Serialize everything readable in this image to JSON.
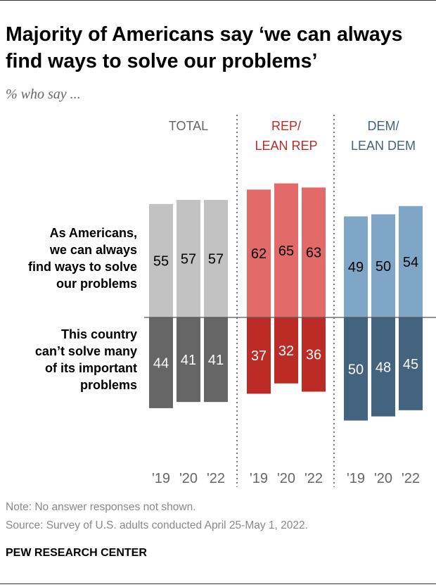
{
  "chart_data": {
    "type": "bar",
    "title": "Majority of Americans say ‘we can always find ways to solve our problems’",
    "subtitle": "% who say ...",
    "row_labels": [
      "As Americans, we can always find ways to solve our problems",
      "This country can’t solve many of its important problems"
    ],
    "row_label_lines": [
      [
        "As Americans,",
        "we can always",
        "find ways to solve",
        "our problems"
      ],
      [
        "This country",
        "can’t solve many",
        "of its important",
        "problems"
      ]
    ],
    "categories": [
      "'19",
      "'20",
      "'22"
    ],
    "groups": [
      {
        "name": "TOTAL",
        "label_lines": [
          "TOTAL"
        ],
        "header_color": "#666666",
        "light_color": "#c2c2c2",
        "dark_color": "#666666",
        "can_solve": [
          55,
          57,
          57
        ],
        "cant_solve": [
          44,
          41,
          41
        ]
      },
      {
        "name": "REP/ LEAN REP",
        "label_lines": [
          "REP/",
          "LEAN REP"
        ],
        "header_color": "#bd2b26",
        "light_color": "#e26a69",
        "dark_color": "#bd2b26",
        "can_solve": [
          62,
          65,
          63
        ],
        "cant_solve": [
          37,
          32,
          36
        ]
      },
      {
        "name": "DEM/ LEAN DEM",
        "label_lines": [
          "DEM/",
          "LEAN DEM"
        ],
        "header_color": "#44637f",
        "light_color": "#7fa6c6",
        "dark_color": "#44637f",
        "can_solve": [
          49,
          50,
          54
        ],
        "cant_solve": [
          50,
          48,
          45
        ]
      }
    ],
    "ylim": [
      -55,
      70
    ]
  },
  "note": "Note: No answer responses not shown.",
  "source": "Source: Survey of U.S. adults conducted April 25-May 1, 2022.",
  "brand": "PEW RESEARCH CENTER"
}
